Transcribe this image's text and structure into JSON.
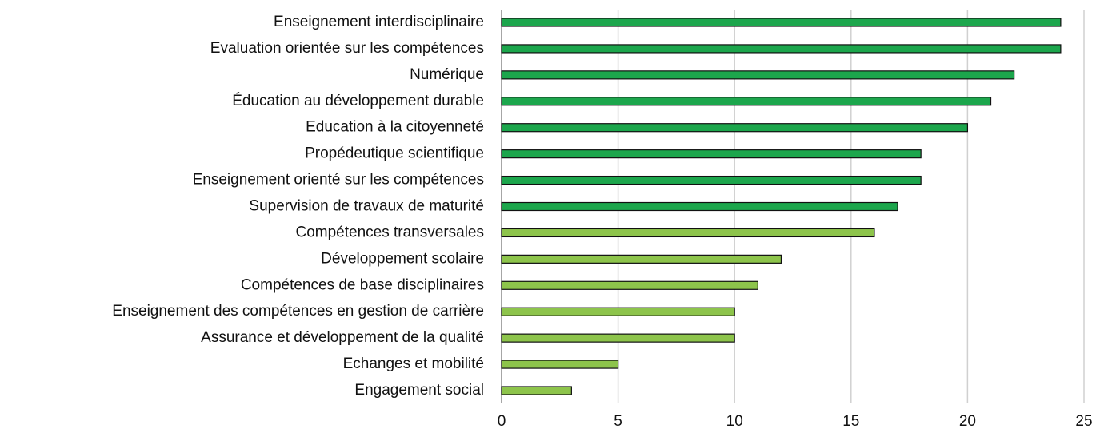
{
  "chart_data": {
    "type": "barh",
    "categories": [
      "Enseignement interdisciplinaire",
      "Evaluation orientée sur les compétences",
      "Numérique",
      "Éducation au développement durable",
      "Education à la citoyenneté",
      "Propédeutique scientifique",
      "Enseignement orienté sur les compétences",
      "Supervision de travaux de maturité",
      "Compétences transversales",
      "Développement scolaire",
      "Compétences de base disciplinaires",
      "Enseignement des compétences en gestion de carrière",
      "Assurance et développement de la qualité",
      "Echanges et mobilité",
      "Engagement social"
    ],
    "values": [
      24,
      24,
      22,
      21,
      20,
      18,
      18,
      17,
      16,
      12,
      11,
      10,
      10,
      5,
      3
    ],
    "colors": [
      "#1ca64c",
      "#1ca64c",
      "#1ca64c",
      "#1ca64c",
      "#1ca64c",
      "#1ca64c",
      "#1ca64c",
      "#1ca64c",
      "#8dc44b",
      "#8dc44b",
      "#8dc44b",
      "#8dc44b",
      "#8dc44b",
      "#8dc44b",
      "#8dc44b"
    ],
    "xlim": [
      0,
      25
    ],
    "xticks": [
      0,
      5,
      10,
      15,
      20,
      25
    ],
    "grid": true
  }
}
